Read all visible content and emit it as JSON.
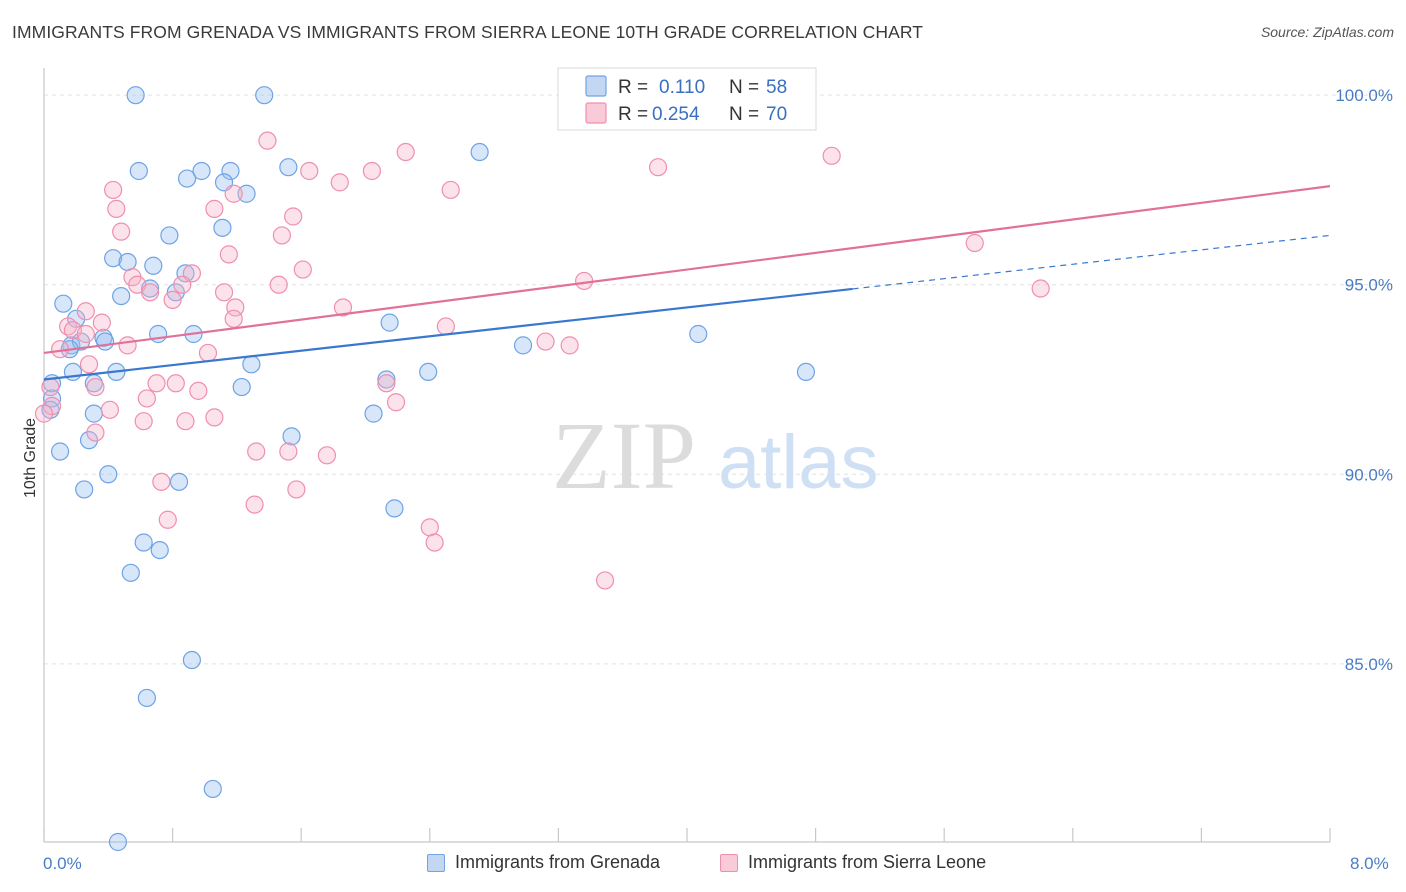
{
  "header": {
    "title": "IMMIGRANTS FROM GRENADA VS IMMIGRANTS FROM SIERRA LEONE 10TH GRADE CORRELATION CHART",
    "source": "Source: ZipAtlas.com"
  },
  "watermark": {
    "zip": "ZIP",
    "atlas": "atlas"
  },
  "legend_box": {
    "rows": [
      {
        "r_label": "R =",
        "r_value": "0.110",
        "n_label": "N =",
        "n_value": "58",
        "color": "#6fa3e6"
      },
      {
        "r_label": "R =",
        "r_value": "0.254",
        "n_label": "N =",
        "n_value": "70",
        "color": "#ef8fae"
      }
    ]
  },
  "bottom_legend": {
    "items": [
      {
        "label": "Immigrants from Grenada",
        "color": "#6fa3e6"
      },
      {
        "label": "Immigrants from Sierra Leone",
        "color": "#ef8fae"
      }
    ]
  },
  "chart_data": {
    "type": "scatter",
    "title": "IMMIGRANTS FROM GRENADA VS IMMIGRANTS FROM SIERRA LEONE 10TH GRADE CORRELATION CHART",
    "xlabel": "",
    "ylabel": "10th Grade",
    "xlim": [
      0.0,
      8.0
    ],
    "ylim": [
      80.3,
      100.4
    ],
    "x_tick_labels": [
      "0.0%",
      "8.0%"
    ],
    "y_ticks": [
      85.0,
      90.0,
      95.0,
      100.0
    ],
    "y_tick_labels": [
      "85.0%",
      "90.0%",
      "95.0%",
      "100.0%"
    ],
    "grid": true,
    "legend_position": "top-center",
    "series": [
      {
        "name": "Immigrants from Grenada",
        "color": "#6fa3e6",
        "trend": {
          "x": [
            0.0,
            5.03,
            8.0
          ],
          "y": [
            92.5,
            94.85,
            96.3
          ],
          "solid_until": 5.03
        },
        "points": [
          [
            0.57,
            100.0
          ],
          [
            1.37,
            100.0
          ],
          [
            0.59,
            98.0
          ],
          [
            0.89,
            97.8
          ],
          [
            0.98,
            98.0
          ],
          [
            1.16,
            98.0
          ],
          [
            1.52,
            98.1
          ],
          [
            2.71,
            98.5
          ],
          [
            1.12,
            97.7
          ],
          [
            1.26,
            97.4
          ],
          [
            0.78,
            96.3
          ],
          [
            1.11,
            96.5
          ],
          [
            0.43,
            95.7
          ],
          [
            0.52,
            95.6
          ],
          [
            0.68,
            95.5
          ],
          [
            0.88,
            95.3
          ],
          [
            0.66,
            94.9
          ],
          [
            0.82,
            94.8
          ],
          [
            0.48,
            94.7
          ],
          [
            0.12,
            94.5
          ],
          [
            0.2,
            94.1
          ],
          [
            0.71,
            93.7
          ],
          [
            0.93,
            93.7
          ],
          [
            2.15,
            94.0
          ],
          [
            4.07,
            93.7
          ],
          [
            0.17,
            93.4
          ],
          [
            0.23,
            93.5
          ],
          [
            0.37,
            93.6
          ],
          [
            0.38,
            93.5
          ],
          [
            2.98,
            93.4
          ],
          [
            0.16,
            93.3
          ],
          [
            1.29,
            92.9
          ],
          [
            0.18,
            92.7
          ],
          [
            0.45,
            92.7
          ],
          [
            2.39,
            92.7
          ],
          [
            4.74,
            92.7
          ],
          [
            0.05,
            92.4
          ],
          [
            0.31,
            92.4
          ],
          [
            1.23,
            92.3
          ],
          [
            2.13,
            92.5
          ],
          [
            0.05,
            92.0
          ],
          [
            0.31,
            91.6
          ],
          [
            2.05,
            91.6
          ],
          [
            0.04,
            91.7
          ],
          [
            1.54,
            91.0
          ],
          [
            0.28,
            90.9
          ],
          [
            0.1,
            90.6
          ],
          [
            0.4,
            90.0
          ],
          [
            0.84,
            89.8
          ],
          [
            0.25,
            89.6
          ],
          [
            2.18,
            89.1
          ],
          [
            0.62,
            88.2
          ],
          [
            0.72,
            88.0
          ],
          [
            0.54,
            87.4
          ],
          [
            0.92,
            85.1
          ],
          [
            0.64,
            84.1
          ],
          [
            1.05,
            81.7
          ],
          [
            0.46,
            80.3
          ]
        ]
      },
      {
        "name": "Immigrants from Sierra Leone",
        "color": "#ef8fae",
        "trend": {
          "x": [
            0.0,
            8.0
          ],
          "y": [
            93.2,
            97.6
          ],
          "solid_until": 8.0
        },
        "points": [
          [
            3.4,
            100.0
          ],
          [
            4.33,
            100.0
          ],
          [
            1.39,
            98.8
          ],
          [
            2.25,
            98.5
          ],
          [
            4.9,
            98.4
          ],
          [
            3.82,
            98.1
          ],
          [
            1.65,
            98.0
          ],
          [
            2.04,
            98.0
          ],
          [
            1.84,
            97.7
          ],
          [
            0.43,
            97.5
          ],
          [
            1.18,
            97.4
          ],
          [
            2.53,
            97.5
          ],
          [
            0.45,
            97.0
          ],
          [
            1.06,
            97.0
          ],
          [
            1.55,
            96.8
          ],
          [
            0.48,
            96.4
          ],
          [
            1.48,
            96.3
          ],
          [
            5.79,
            96.1
          ],
          [
            1.15,
            95.8
          ],
          [
            1.61,
            95.4
          ],
          [
            0.92,
            95.3
          ],
          [
            0.55,
            95.2
          ],
          [
            0.58,
            95.0
          ],
          [
            0.86,
            95.0
          ],
          [
            1.46,
            95.0
          ],
          [
            3.36,
            95.1
          ],
          [
            6.2,
            94.9
          ],
          [
            0.66,
            94.8
          ],
          [
            1.12,
            94.8
          ],
          [
            0.8,
            94.6
          ],
          [
            1.19,
            94.4
          ],
          [
            1.86,
            94.4
          ],
          [
            0.26,
            94.3
          ],
          [
            1.18,
            94.1
          ],
          [
            0.36,
            94.0
          ],
          [
            0.15,
            93.9
          ],
          [
            2.5,
            93.9
          ],
          [
            0.18,
            93.8
          ],
          [
            0.26,
            93.7
          ],
          [
            3.12,
            93.5
          ],
          [
            0.52,
            93.4
          ],
          [
            3.27,
            93.4
          ],
          [
            0.1,
            93.3
          ],
          [
            1.02,
            93.2
          ],
          [
            0.28,
            92.9
          ],
          [
            0.7,
            92.4
          ],
          [
            0.82,
            92.4
          ],
          [
            2.13,
            92.4
          ],
          [
            0.04,
            92.3
          ],
          [
            0.32,
            92.3
          ],
          [
            0.96,
            92.2
          ],
          [
            0.64,
            92.0
          ],
          [
            2.19,
            91.9
          ],
          [
            0.05,
            91.8
          ],
          [
            0.41,
            91.7
          ],
          [
            1.06,
            91.5
          ],
          [
            0.62,
            91.4
          ],
          [
            0.88,
            91.4
          ],
          [
            0.32,
            91.1
          ],
          [
            1.32,
            90.6
          ],
          [
            1.52,
            90.6
          ],
          [
            1.76,
            90.5
          ],
          [
            0.73,
            89.8
          ],
          [
            1.57,
            89.6
          ],
          [
            1.31,
            89.2
          ],
          [
            0.77,
            88.8
          ],
          [
            2.4,
            88.6
          ],
          [
            2.43,
            88.2
          ],
          [
            3.49,
            87.2
          ],
          [
            0.0,
            91.6
          ]
        ]
      }
    ]
  }
}
